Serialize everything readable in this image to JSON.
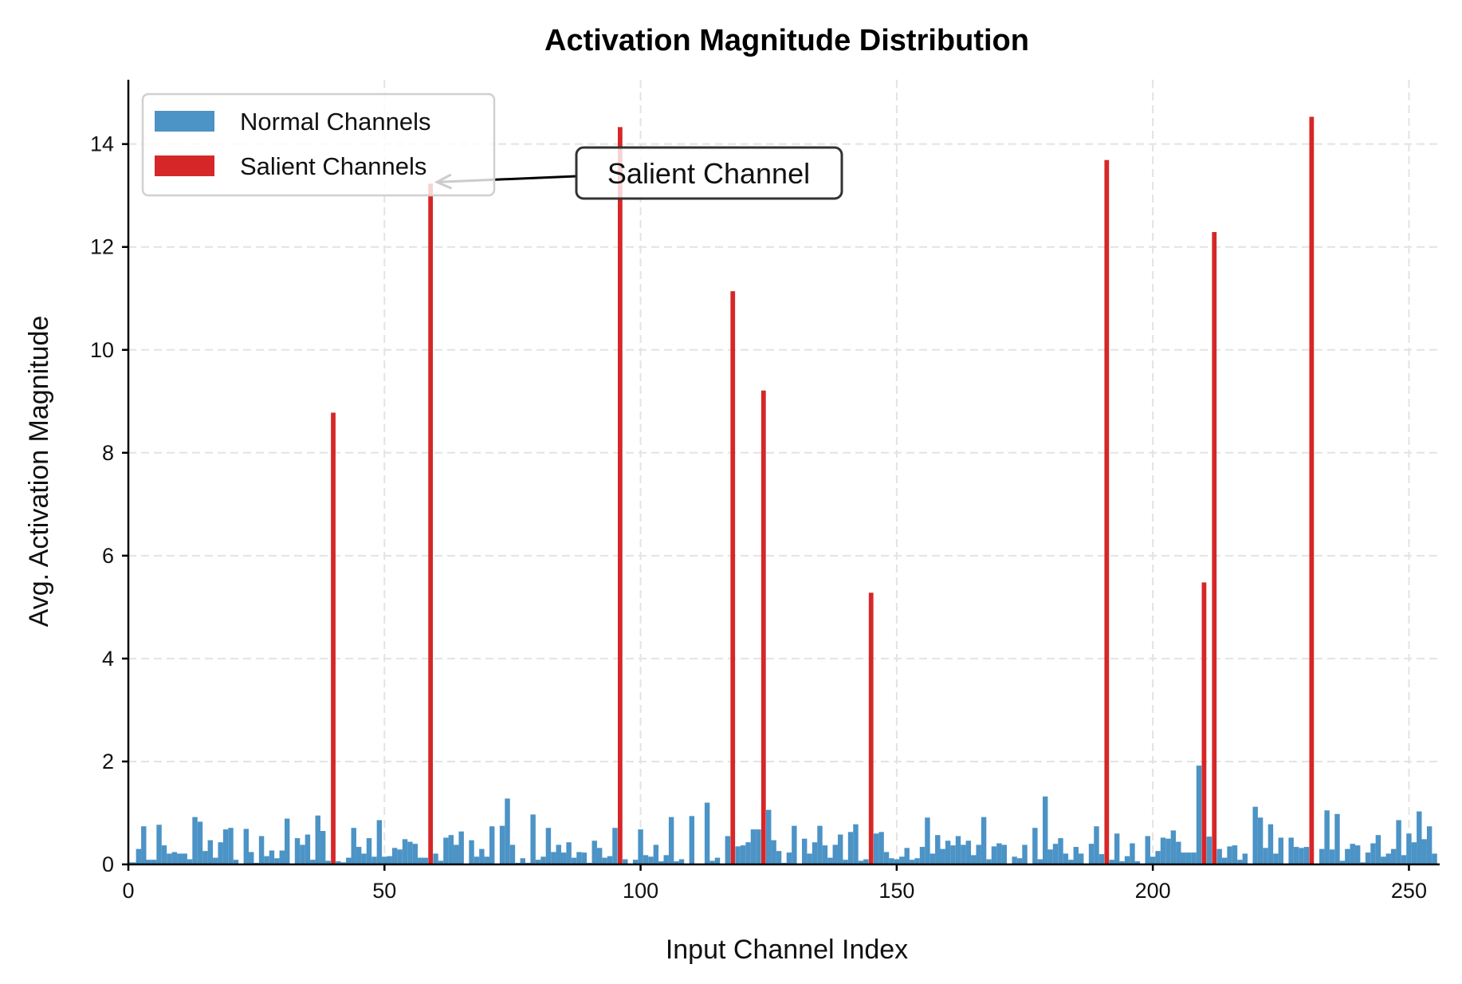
{
  "chart_data": {
    "type": "bar",
    "title": "Activation Magnitude Distribution",
    "xlabel": "Input Channel Index",
    "ylabel": "Avg. Activation Magnitude",
    "xlim": [
      -0.5,
      256
    ],
    "ylim": [
      0,
      15.25
    ],
    "xticks": [
      0,
      50,
      100,
      150,
      200,
      250
    ],
    "yticks": [
      0,
      2,
      4,
      6,
      8,
      10,
      12,
      14
    ],
    "grid": true,
    "legend_placement": "upper-left",
    "series": [
      {
        "name": "Normal Channels",
        "color": "#4c93c6"
      },
      {
        "name": "Salient Channels",
        "color": "#d62728"
      }
    ],
    "salient_indices": [
      40,
      59,
      96,
      118,
      124,
      145,
      191,
      210,
      212,
      231
    ],
    "values": [
      0.04,
      0.04,
      0.3,
      0.74,
      0.09,
      0.09,
      0.77,
      0.37,
      0.21,
      0.24,
      0.21,
      0.21,
      0.1,
      0.92,
      0.83,
      0.26,
      0.47,
      0.13,
      0.43,
      0.68,
      0.71,
      0.09,
      0.01,
      0.69,
      0.24,
      0.03,
      0.55,
      0.16,
      0.27,
      0.12,
      0.27,
      0.89,
      0,
      0.51,
      0.38,
      0.58,
      0.09,
      0.95,
      0.65,
      0.07,
      8.78,
      0.06,
      0.04,
      0.13,
      0.71,
      0.34,
      0.21,
      0.51,
      0.15,
      0.86,
      0.15,
      0.16,
      0.32,
      0.29,
      0.49,
      0.44,
      0.4,
      0.13,
      0.13,
      13.23,
      0.21,
      0.07,
      0.52,
      0.57,
      0.38,
      0.64,
      0.01,
      0.47,
      0.15,
      0.3,
      0.15,
      0.74,
      0,
      0.75,
      1.28,
      0.38,
      0.03,
      0.12,
      0.03,
      0.97,
      0.09,
      0.15,
      0.71,
      0.24,
      0.38,
      0.23,
      0.43,
      0.13,
      0.24,
      0.23,
      0.03,
      0.46,
      0.32,
      0.13,
      0.16,
      0.71,
      14.33,
      0.1,
      0,
      0.09,
      0.68,
      0.18,
      0.15,
      0.38,
      0.06,
      0.18,
      0.92,
      0.06,
      0.1,
      0.01,
      0.94,
      0.01,
      0.01,
      1.2,
      0.07,
      0.13,
      0,
      0.55,
      11.14,
      0.35,
      0.37,
      0.43,
      0.68,
      0.68,
      9.21,
      1.06,
      0.47,
      0.26,
      0.03,
      0.23,
      0.75,
      0.01,
      0.5,
      0.21,
      0.43,
      0.75,
      0.37,
      0.13,
      0.38,
      0.58,
      0.09,
      0.63,
      0.78,
      0.07,
      0.1,
      5.28,
      0.6,
      0.63,
      0.24,
      0.12,
      0.1,
      0.15,
      0.32,
      0.09,
      0.12,
      0.34,
      0.91,
      0.21,
      0.57,
      0.3,
      0.46,
      0.37,
      0.55,
      0.38,
      0.46,
      0.18,
      0.38,
      0.92,
      0.1,
      0.35,
      0.41,
      0.38,
      0.01,
      0.15,
      0.12,
      0.38,
      0,
      0.71,
      0.1,
      1.32,
      0.29,
      0.4,
      0.51,
      0.21,
      0.09,
      0.34,
      0.21,
      0.01,
      0.4,
      0.74,
      0.2,
      13.69,
      0.09,
      0.6,
      0.06,
      0.16,
      0.41,
      0.06,
      0.01,
      0.55,
      0.15,
      0.26,
      0.52,
      0.5,
      0.66,
      0.44,
      0.23,
      0.23,
      0.23,
      1.92,
      5.48,
      0.54,
      12.29,
      0.3,
      0.13,
      0.35,
      0.37,
      0.09,
      0.21,
      0.01,
      1.12,
      0.91,
      0.32,
      0.78,
      0.21,
      0.52,
      0.01,
      0.52,
      0.34,
      0.32,
      0.34,
      14.53,
      0,
      0.3,
      1.05,
      0.29,
      0.98,
      0.07,
      0.3,
      0.4,
      0.37,
      0.04,
      0.23,
      0.41,
      0.57,
      0.15,
      0.21,
      0.3,
      0.86,
      0.18,
      0.6,
      0.43,
      1.03,
      0.49,
      0.74,
      0.21
    ],
    "annotation": {
      "text": "Salient Channel",
      "target_index": 59,
      "target_value": 13.23
    }
  }
}
